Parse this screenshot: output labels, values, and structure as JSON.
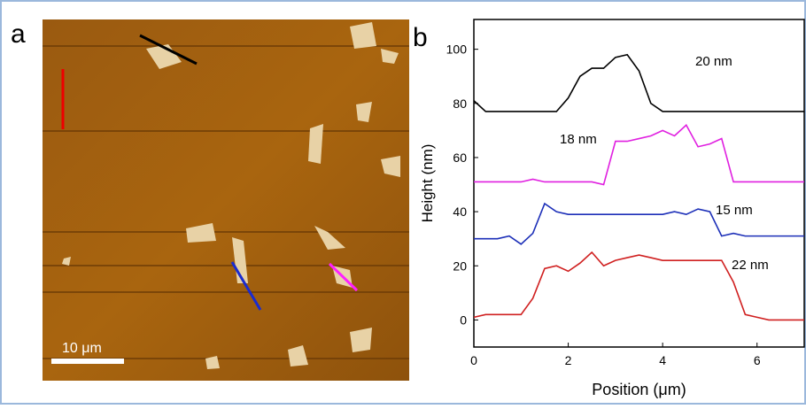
{
  "panel_a": {
    "label": "a",
    "scale_bar": "10 μm"
  },
  "chart_data": {
    "type": "line",
    "panel_label": "b",
    "x_label": "Position (μm)",
    "y_label": "Height (nm)",
    "x": [
      0,
      0.25,
      0.5,
      0.75,
      1,
      1.25,
      1.5,
      1.75,
      2,
      2.25,
      2.5,
      2.75,
      3,
      3.25,
      3.5,
      3.75,
      4,
      4.25,
      4.5,
      4.75,
      5,
      5.25,
      5.5,
      5.75,
      6,
      6.25,
      6.5,
      6.75,
      7
    ],
    "xlim": [
      0,
      7
    ],
    "xticks": [
      0,
      2,
      4,
      6
    ],
    "ylim": [
      -10,
      111
    ],
    "yticks": [
      0,
      20,
      40,
      60,
      80,
      100
    ],
    "series": [
      {
        "label": "20 nm",
        "color": "#000000",
        "values": [
          81,
          77,
          77,
          77,
          77,
          77,
          77,
          77,
          82,
          90,
          93,
          93,
          97,
          98,
          92,
          80,
          77,
          77,
          77,
          77,
          77,
          77,
          77,
          77,
          77,
          77,
          77,
          77,
          77
        ]
      },
      {
        "label": "18 nm",
        "color": "#e020e0",
        "values": [
          51,
          51,
          51,
          51,
          51,
          52,
          51,
          51,
          51,
          51,
          51,
          50,
          66,
          66,
          67,
          68,
          70,
          68,
          72,
          64,
          65,
          67,
          51,
          51,
          51,
          51,
          51,
          51,
          51
        ]
      },
      {
        "label": "15 nm",
        "color": "#1c2fb8",
        "values": [
          30,
          30,
          30,
          31,
          28,
          32,
          43,
          40,
          39,
          39,
          39,
          39,
          39,
          39,
          39,
          39,
          39,
          40,
          39,
          41,
          40,
          31,
          32,
          31,
          31,
          31,
          31,
          31,
          31
        ]
      },
      {
        "label": "22 nm",
        "color": "#d02020",
        "values": [
          1,
          2,
          2,
          2,
          2,
          8,
          19,
          20,
          18,
          21,
          25,
          20,
          22,
          23,
          24,
          23,
          22,
          22,
          22,
          22,
          22,
          22,
          14,
          2,
          1,
          0,
          0,
          0,
          0
        ]
      }
    ]
  }
}
